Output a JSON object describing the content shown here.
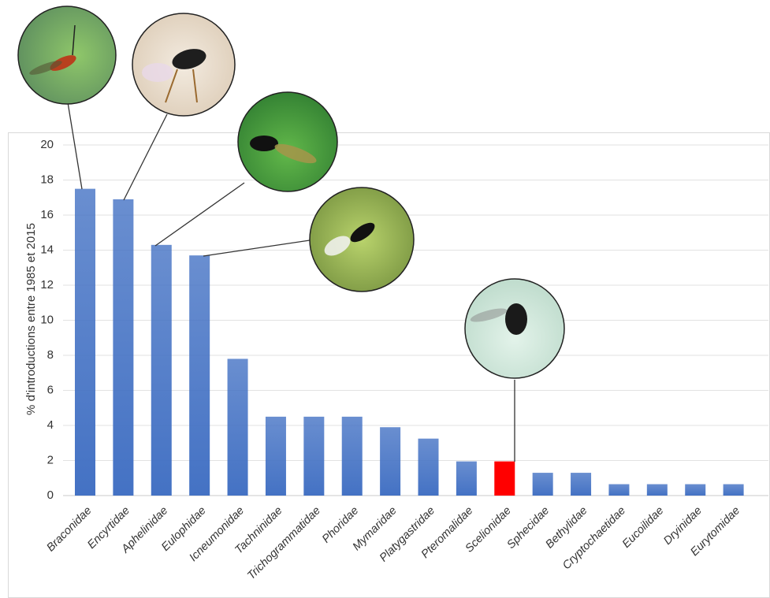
{
  "chart_data": {
    "type": "bar",
    "y_label": "% d'introductions entre 1985 et 2015",
    "categories": [
      "Braconidae",
      "Encyrtidae",
      "Aphelinidae",
      "Eulophidae",
      "Icneumonidae",
      "Tachninidae",
      "Trichogrammatidae",
      "Phoridae",
      "Mymaridae",
      "Platygastridae",
      "Pteromalidae",
      "Scelionidae",
      "Sphecidae",
      "Bethylidae",
      "Cryptochaetidae",
      "Eucoilidae",
      "Dryinidae",
      "Eurytomidae"
    ],
    "values": [
      17.5,
      16.9,
      14.3,
      13.7,
      7.8,
      4.5,
      4.5,
      4.5,
      3.9,
      3.25,
      1.95,
      1.95,
      1.3,
      1.3,
      0.65,
      0.65,
      0.65,
      0.65
    ],
    "colors": [
      "#4472c4",
      "#4472c4",
      "#4472c4",
      "#4472c4",
      "#4472c4",
      "#4472c4",
      "#4472c4",
      "#4472c4",
      "#4472c4",
      "#4472c4",
      "#4472c4",
      "#ff0000",
      "#4472c4",
      "#4472c4",
      "#4472c4",
      "#4472c4",
      "#4472c4",
      "#4472c4"
    ],
    "ylim": [
      0,
      20
    ],
    "yticks": [
      0,
      2,
      4,
      6,
      8,
      10,
      12,
      14,
      16,
      18,
      20
    ],
    "grid": true
  }
}
